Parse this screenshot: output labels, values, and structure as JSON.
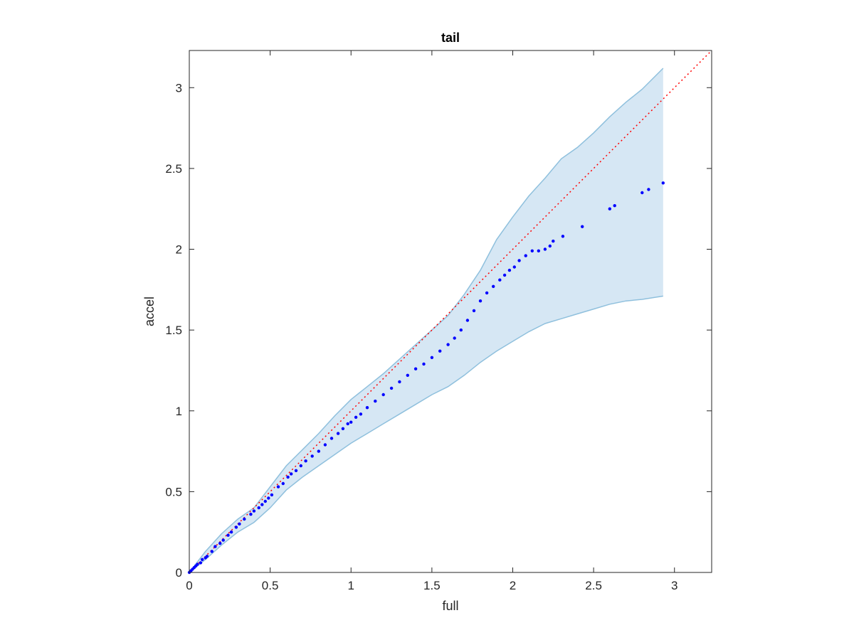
{
  "chart_data": {
    "type": "scatter",
    "title": "tail",
    "xlabel": "full",
    "ylabel": "accel",
    "xlim": [
      0,
      3.23
    ],
    "ylim": [
      0,
      3.23
    ],
    "xticks": [
      0,
      0.5,
      1,
      1.5,
      2,
      2.5,
      3
    ],
    "yticks": [
      0,
      0.5,
      1,
      1.5,
      2,
      2.5,
      3
    ],
    "xtick_labels": [
      "0",
      "0.5",
      "1",
      "1.5",
      "2",
      "2.5",
      "3"
    ],
    "ytick_labels": [
      "0",
      "0.5",
      "1",
      "1.5",
      "2",
      "2.5",
      "3"
    ],
    "grid": false,
    "reference_line": {
      "from": [
        0,
        0
      ],
      "to": [
        3.23,
        3.23
      ],
      "color": "#ff0000",
      "style": "dotted"
    },
    "band": {
      "color": "#d6e7f4",
      "edge_color": "#8fc0dd",
      "upper": [
        [
          0,
          0
        ],
        [
          0.1,
          0.13
        ],
        [
          0.2,
          0.24
        ],
        [
          0.3,
          0.33
        ],
        [
          0.4,
          0.4
        ],
        [
          0.5,
          0.53
        ],
        [
          0.6,
          0.66
        ],
        [
          0.7,
          0.76
        ],
        [
          0.8,
          0.86
        ],
        [
          0.9,
          0.97
        ],
        [
          1.0,
          1.07
        ],
        [
          1.1,
          1.15
        ],
        [
          1.2,
          1.23
        ],
        [
          1.3,
          1.32
        ],
        [
          1.4,
          1.41
        ],
        [
          1.5,
          1.5
        ],
        [
          1.6,
          1.59
        ],
        [
          1.7,
          1.72
        ],
        [
          1.8,
          1.87
        ],
        [
          1.9,
          2.06
        ],
        [
          2.0,
          2.2
        ],
        [
          2.1,
          2.33
        ],
        [
          2.2,
          2.44
        ],
        [
          2.3,
          2.56
        ],
        [
          2.4,
          2.63
        ],
        [
          2.5,
          2.72
        ],
        [
          2.6,
          2.82
        ],
        [
          2.7,
          2.91
        ],
        [
          2.8,
          2.99
        ],
        [
          2.93,
          3.12
        ]
      ],
      "lower": [
        [
          0,
          0
        ],
        [
          0.1,
          0.08
        ],
        [
          0.2,
          0.17
        ],
        [
          0.3,
          0.25
        ],
        [
          0.4,
          0.31
        ],
        [
          0.5,
          0.4
        ],
        [
          0.6,
          0.51
        ],
        [
          0.7,
          0.59
        ],
        [
          0.8,
          0.66
        ],
        [
          0.9,
          0.73
        ],
        [
          1.0,
          0.8
        ],
        [
          1.1,
          0.86
        ],
        [
          1.2,
          0.92
        ],
        [
          1.3,
          0.98
        ],
        [
          1.4,
          1.04
        ],
        [
          1.5,
          1.1
        ],
        [
          1.6,
          1.15
        ],
        [
          1.7,
          1.22
        ],
        [
          1.8,
          1.3
        ],
        [
          1.9,
          1.37
        ],
        [
          2.0,
          1.43
        ],
        [
          2.1,
          1.49
        ],
        [
          2.2,
          1.54
        ],
        [
          2.3,
          1.57
        ],
        [
          2.4,
          1.6
        ],
        [
          2.5,
          1.63
        ],
        [
          2.6,
          1.66
        ],
        [
          2.7,
          1.68
        ],
        [
          2.8,
          1.69
        ],
        [
          2.93,
          1.71
        ]
      ]
    },
    "series": [
      {
        "color": "#0000ff",
        "points": [
          [
            0.0,
            0.0
          ],
          [
            0.01,
            0.01
          ],
          [
            0.02,
            0.02
          ],
          [
            0.03,
            0.03
          ],
          [
            0.04,
            0.04
          ],
          [
            0.05,
            0.05
          ],
          [
            0.07,
            0.06
          ],
          [
            0.08,
            0.08
          ],
          [
            0.1,
            0.09
          ],
          [
            0.11,
            0.1
          ],
          [
            0.14,
            0.13
          ],
          [
            0.16,
            0.16
          ],
          [
            0.19,
            0.18
          ],
          [
            0.21,
            0.2
          ],
          [
            0.24,
            0.23
          ],
          [
            0.26,
            0.25
          ],
          [
            0.29,
            0.28
          ],
          [
            0.31,
            0.3
          ],
          [
            0.34,
            0.33
          ],
          [
            0.38,
            0.36
          ],
          [
            0.4,
            0.38
          ],
          [
            0.43,
            0.4
          ],
          [
            0.45,
            0.42
          ],
          [
            0.47,
            0.44
          ],
          [
            0.49,
            0.46
          ],
          [
            0.51,
            0.48
          ],
          [
            0.55,
            0.53
          ],
          [
            0.58,
            0.55
          ],
          [
            0.61,
            0.59
          ],
          [
            0.63,
            0.61
          ],
          [
            0.66,
            0.63
          ],
          [
            0.69,
            0.66
          ],
          [
            0.72,
            0.69
          ],
          [
            0.76,
            0.72
          ],
          [
            0.8,
            0.75
          ],
          [
            0.84,
            0.79
          ],
          [
            0.88,
            0.83
          ],
          [
            0.92,
            0.86
          ],
          [
            0.95,
            0.89
          ],
          [
            0.98,
            0.92
          ],
          [
            1.0,
            0.93
          ],
          [
            1.03,
            0.96
          ],
          [
            1.06,
            0.98
          ],
          [
            1.1,
            1.02
          ],
          [
            1.15,
            1.06
          ],
          [
            1.2,
            1.1
          ],
          [
            1.25,
            1.14
          ],
          [
            1.3,
            1.18
          ],
          [
            1.35,
            1.22
          ],
          [
            1.4,
            1.26
          ],
          [
            1.45,
            1.29
          ],
          [
            1.5,
            1.33
          ],
          [
            1.55,
            1.37
          ],
          [
            1.6,
            1.41
          ],
          [
            1.64,
            1.45
          ],
          [
            1.68,
            1.5
          ],
          [
            1.72,
            1.56
          ],
          [
            1.76,
            1.62
          ],
          [
            1.8,
            1.68
          ],
          [
            1.84,
            1.73
          ],
          [
            1.88,
            1.77
          ],
          [
            1.92,
            1.81
          ],
          [
            1.95,
            1.84
          ],
          [
            1.98,
            1.87
          ],
          [
            2.01,
            1.89
          ],
          [
            2.04,
            1.93
          ],
          [
            2.08,
            1.96
          ],
          [
            2.12,
            1.99
          ],
          [
            2.16,
            1.99
          ],
          [
            2.2,
            2.0
          ],
          [
            2.23,
            2.02
          ],
          [
            2.25,
            2.05
          ],
          [
            2.31,
            2.08
          ],
          [
            2.43,
            2.14
          ],
          [
            2.6,
            2.25
          ],
          [
            2.63,
            2.27
          ],
          [
            2.8,
            2.35
          ],
          [
            2.84,
            2.37
          ],
          [
            2.93,
            2.41
          ]
        ]
      }
    ]
  }
}
